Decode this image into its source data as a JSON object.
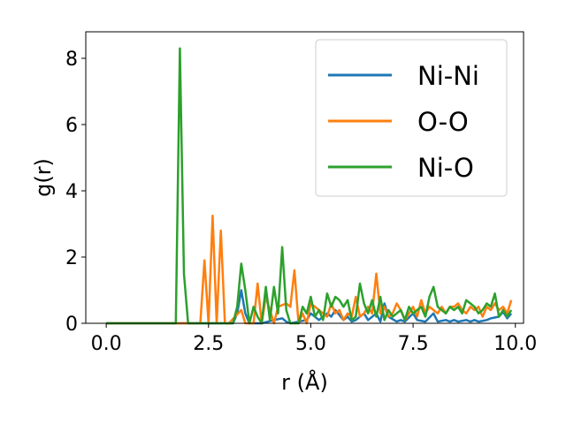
{
  "chart_data": {
    "type": "line",
    "xlabel": "r (Å)",
    "ylabel": "g(r)",
    "xlim": [
      -0.5,
      10.2
    ],
    "ylim": [
      0,
      8.8
    ],
    "xticks": [
      0.0,
      2.5,
      5.0,
      7.5,
      10.0
    ],
    "xtick_labels": [
      "0.0",
      "2.5",
      "5.0",
      "7.5",
      "10.0"
    ],
    "yticks": [
      0,
      2,
      4,
      6,
      8
    ],
    "ytick_labels": [
      "0",
      "2",
      "4",
      "6",
      "8"
    ],
    "grid": false,
    "legend_position": "top-right",
    "series": [
      {
        "name": "Ni-Ni",
        "color": "#1f77b4",
        "x": [
          0.0,
          1.7,
          3.1,
          3.2,
          3.3,
          3.4,
          3.5,
          3.8,
          4.1,
          4.3,
          4.4,
          4.5,
          4.9,
          5.0,
          5.2,
          5.4,
          5.5,
          5.6,
          5.8,
          5.9,
          6.0,
          6.1,
          6.3,
          6.4,
          6.6,
          6.7,
          6.8,
          6.9,
          7.1,
          7.2,
          7.3,
          7.5,
          7.6,
          7.8,
          8.0,
          8.1,
          8.3,
          8.4,
          8.5,
          8.6,
          8.8,
          8.9,
          9.0,
          9.1,
          9.3,
          9.4,
          9.6,
          9.7,
          9.8,
          9.9
        ],
        "y": [
          0,
          0,
          0,
          0.3,
          1.0,
          0.3,
          0,
          0,
          0.1,
          0.15,
          0.05,
          0,
          0.1,
          0.3,
          0.1,
          0.3,
          0.2,
          0.4,
          0.1,
          0.2,
          0.05,
          0.1,
          0.3,
          0.1,
          0.3,
          0.05,
          0.6,
          0.2,
          0.05,
          0.1,
          0.05,
          0.3,
          0.1,
          0.05,
          0.3,
          0.05,
          0.1,
          0.05,
          0.1,
          0.05,
          0.1,
          0.05,
          0.1,
          0.05,
          0.1,
          0.15,
          0.2,
          0.35,
          0.15,
          0.3
        ]
      },
      {
        "name": "O-O",
        "color": "#ff7f0e",
        "x": [
          0.0,
          2.2,
          2.3,
          2.4,
          2.5,
          2.6,
          2.7,
          2.8,
          2.9,
          3.0,
          3.3,
          3.4,
          3.6,
          3.7,
          3.8,
          3.9,
          4.1,
          4.2,
          4.4,
          4.5,
          4.6,
          4.7,
          4.8,
          4.9,
          5.0,
          5.1,
          5.2,
          5.3,
          5.4,
          5.5,
          5.6,
          5.7,
          5.8,
          5.9,
          6.0,
          6.1,
          6.2,
          6.3,
          6.4,
          6.5,
          6.6,
          6.7,
          6.8,
          6.9,
          7.0,
          7.1,
          7.2,
          7.3,
          7.4,
          7.5,
          7.6,
          7.7,
          7.8,
          7.9,
          8.0,
          8.1,
          8.2,
          8.3,
          8.4,
          8.5,
          8.6,
          8.7,
          8.8,
          8.9,
          9.0,
          9.1,
          9.2,
          9.3,
          9.4,
          9.5,
          9.6,
          9.7,
          9.8,
          9.9
        ],
        "y": [
          0,
          0,
          0,
          1.9,
          0,
          3.25,
          0,
          2.8,
          0,
          0,
          0.4,
          0,
          0,
          1.2,
          0,
          0.8,
          0,
          0.5,
          0.6,
          0.5,
          1.6,
          0,
          0.3,
          0,
          0.6,
          0.5,
          0.4,
          0.3,
          0.2,
          0.6,
          0.3,
          0.4,
          0.1,
          0.3,
          0.2,
          0.8,
          0.2,
          0.3,
          0.5,
          0.3,
          1.5,
          0.3,
          0.5,
          0.2,
          0.3,
          0.6,
          0.4,
          0.1,
          0.3,
          0.5,
          0.2,
          0.7,
          0.3,
          0.5,
          0.4,
          0.3,
          0.5,
          0.3,
          0.5,
          0.5,
          0.6,
          0.4,
          0.3,
          0.5,
          0.4,
          0.5,
          0.2,
          0.5,
          0.4,
          0.6,
          0.4,
          0.5,
          0.3,
          0.7
        ]
      },
      {
        "name": "Ni-O",
        "color": "#2ca02c",
        "x": [
          0.0,
          1.7,
          1.8,
          1.9,
          2.0,
          3.1,
          3.2,
          3.3,
          3.4,
          3.5,
          3.6,
          3.7,
          3.8,
          3.9,
          4.0,
          4.1,
          4.2,
          4.3,
          4.4,
          4.5,
          4.6,
          4.7,
          4.8,
          4.9,
          5.0,
          5.1,
          5.2,
          5.3,
          5.4,
          5.5,
          5.6,
          5.7,
          5.8,
          5.9,
          6.0,
          6.1,
          6.2,
          6.3,
          6.4,
          6.5,
          6.6,
          6.7,
          6.8,
          6.9,
          7.0,
          7.1,
          7.2,
          7.3,
          7.4,
          7.5,
          7.6,
          7.7,
          7.8,
          7.9,
          8.0,
          8.1,
          8.2,
          8.3,
          8.4,
          8.5,
          8.6,
          8.7,
          8.8,
          8.9,
          9.0,
          9.1,
          9.2,
          9.3,
          9.4,
          9.5,
          9.6,
          9.7,
          9.8,
          9.9
        ],
        "y": [
          0,
          0,
          8.3,
          1.5,
          0,
          0,
          0.5,
          1.8,
          1.0,
          0,
          0.5,
          0.2,
          0,
          1.1,
          0.1,
          1.1,
          0.3,
          2.3,
          0.4,
          0,
          0,
          0,
          0.5,
          0.3,
          0.8,
          0.2,
          0.4,
          0.1,
          0.9,
          0.5,
          0.8,
          0.7,
          0.5,
          0.7,
          0.1,
          0.2,
          1.2,
          0.6,
          0.3,
          0.7,
          0.2,
          0.8,
          0.1,
          0.4,
          0.2,
          0.3,
          0.4,
          0.1,
          0.5,
          0.3,
          0.4,
          0.5,
          0.2,
          0.8,
          1.1,
          0.5,
          0.4,
          0.3,
          0.5,
          0.4,
          0.5,
          0.3,
          0.7,
          0.6,
          0.5,
          0.3,
          0.4,
          0.6,
          0.5,
          0.9,
          0.2,
          0.4,
          0.2,
          0.4
        ]
      }
    ]
  }
}
